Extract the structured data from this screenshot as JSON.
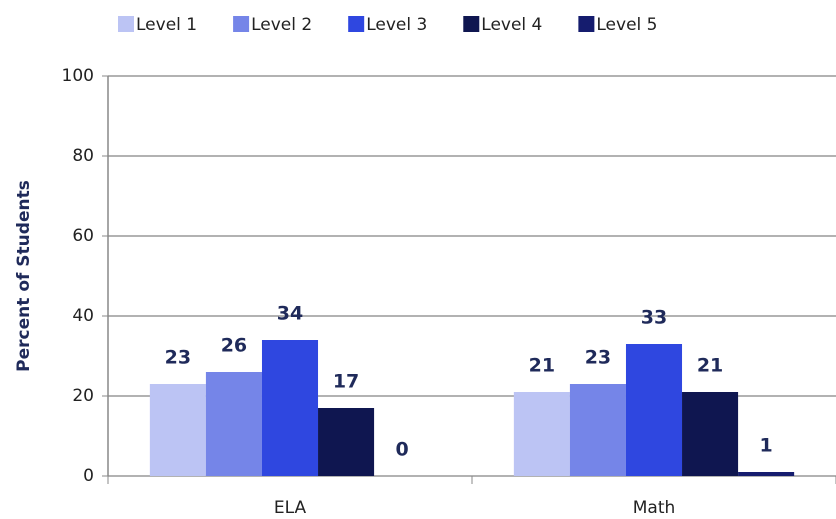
{
  "chart_data": {
    "type": "bar",
    "y_label": "Percent of Students",
    "categories": [
      "ELA",
      "Math"
    ],
    "series": [
      {
        "name": "Level 1",
        "color": "#bcc4f4",
        "values": [
          23,
          21
        ]
      },
      {
        "name": "Level 2",
        "color": "#7585e8",
        "values": [
          26,
          23
        ]
      },
      {
        "name": "Level 3",
        "color": "#2f47e0",
        "values": [
          34,
          33
        ]
      },
      {
        "name": "Level 4",
        "color": "#0f1650",
        "values": [
          17,
          21
        ]
      },
      {
        "name": "Level 5",
        "color": "#151c6e",
        "values": [
          0,
          1
        ]
      }
    ],
    "ylim": [
      0,
      100
    ],
    "yticks": [
      0,
      20,
      40,
      60,
      80,
      100
    ],
    "grid": true,
    "legend": "top"
  }
}
